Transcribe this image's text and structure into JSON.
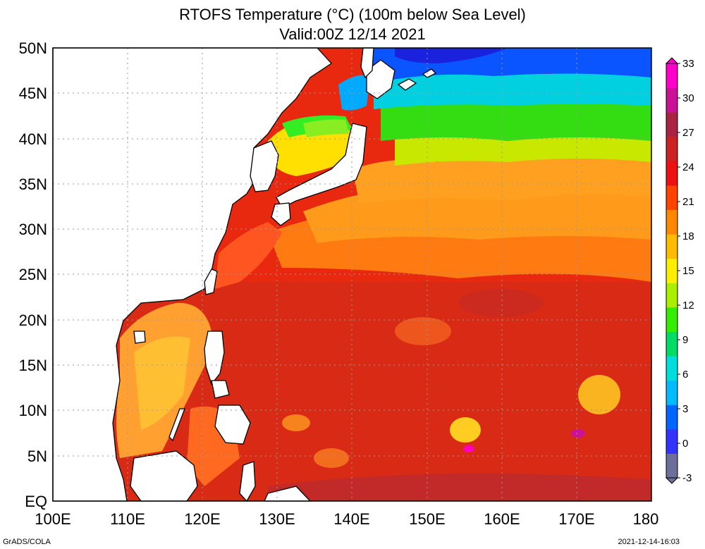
{
  "title": {
    "line1": "RTOFS Temperature (°C) (100m below Sea Level)",
    "line2": "Valid:00Z 12/14 2021"
  },
  "lat_labels": [
    "50N",
    "45N",
    "40N",
    "35N",
    "30N",
    "25N",
    "20N",
    "15N",
    "10N",
    "5N",
    "EQ"
  ],
  "lon_labels": [
    "100E",
    "110E",
    "120E",
    "130E",
    "140E",
    "150E",
    "160E",
    "170E",
    "180"
  ],
  "colorbar": {
    "ticks": [
      "33",
      "30",
      "27",
      "24",
      "21",
      "18",
      "15",
      "12",
      "9",
      "6",
      "3",
      "0",
      "-3"
    ],
    "colors": [
      "#6e6e9a",
      "#3333ff",
      "#0066ff",
      "#00bbff",
      "#00dddd",
      "#00dd66",
      "#33ee00",
      "#aaee00",
      "#ffee00",
      "#ffbb00",
      "#ff8800",
      "#ff4400",
      "#ee1111",
      "#cc2222",
      "#aa2244",
      "#cc1199",
      "#ff00cc"
    ]
  },
  "footer": {
    "credit": "GrADS/COLA",
    "timestamp": "2021-12-14-16:03"
  }
}
